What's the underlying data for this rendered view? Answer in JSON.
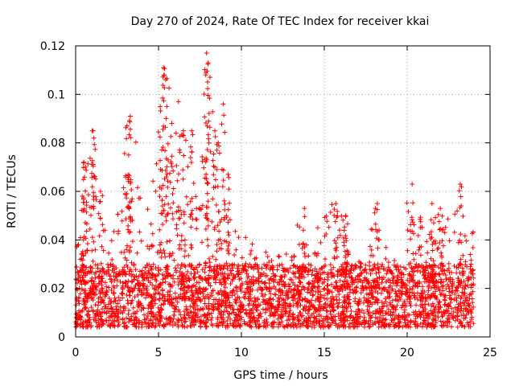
{
  "chart_data": {
    "type": "scatter",
    "title": "Day 270 of 2024, Rate Of TEC Index for receiver kkai",
    "xlabel": "GPS time / hours",
    "ylabel": "ROTI / TECUs",
    "xlim": [
      0,
      25
    ],
    "ylim": [
      0,
      0.12
    ],
    "xticks": [
      0,
      5,
      10,
      15,
      20,
      25
    ],
    "yticks": [
      0,
      0.02,
      0.04,
      0.06,
      0.08,
      0.1,
      0.12
    ],
    "xtick_labels": [
      "0",
      "5",
      "10",
      "15",
      "20",
      "25"
    ],
    "ytick_labels": [
      "0",
      "0.02",
      "0.04",
      "0.06",
      "0.08",
      "0.1",
      "0.12"
    ],
    "grid": true,
    "marker": "+",
    "series_color": "#ff0000",
    "baseline_band": {
      "x_range": [
        0,
        24
      ],
      "y_range": [
        0.004,
        0.03
      ]
    },
    "envelope": {
      "description": "upper envelope of ROTI values over the day",
      "x": [
        0,
        0.5,
        1,
        1.5,
        2,
        2.5,
        3,
        3.5,
        4,
        4.5,
        5,
        5.5,
        6,
        6.5,
        7,
        7.5,
        8,
        8.5,
        9,
        9.5,
        10,
        10.5,
        11,
        11.5,
        12,
        12.5,
        13,
        13.5,
        14,
        14.5,
        15,
        15.5,
        16,
        16.5,
        17,
        17.5,
        18,
        18.5,
        19,
        19.5,
        20,
        20.5,
        21,
        21.5,
        22,
        22.5,
        23,
        23.5,
        24
      ],
      "y": [
        0.036,
        0.072,
        0.085,
        0.06,
        0.05,
        0.05,
        0.087,
        0.09,
        0.06,
        0.055,
        0.095,
        0.11,
        0.09,
        0.097,
        0.085,
        0.06,
        0.117,
        0.08,
        0.07,
        0.045,
        0.04,
        0.042,
        0.035,
        0.035,
        0.03,
        0.038,
        0.033,
        0.053,
        0.035,
        0.045,
        0.05,
        0.055,
        0.052,
        0.045,
        0.032,
        0.03,
        0.055,
        0.036,
        0.04,
        0.035,
        0.063,
        0.045,
        0.055,
        0.053,
        0.048,
        0.05,
        0.063,
        0.045,
        0.044
      ]
    },
    "peaks": [
      {
        "x": 0.4,
        "y": 0.058
      },
      {
        "x": 0.5,
        "y": 0.072
      },
      {
        "x": 0.6,
        "y": 0.07
      },
      {
        "x": 1.0,
        "y": 0.085
      },
      {
        "x": 1.1,
        "y": 0.082
      },
      {
        "x": 1.5,
        "y": 0.06
      },
      {
        "x": 3.1,
        "y": 0.087
      },
      {
        "x": 3.3,
        "y": 0.091
      },
      {
        "x": 3.2,
        "y": 0.075
      },
      {
        "x": 5.1,
        "y": 0.095
      },
      {
        "x": 5.3,
        "y": 0.111
      },
      {
        "x": 5.35,
        "y": 0.108
      },
      {
        "x": 5.5,
        "y": 0.095
      },
      {
        "x": 5.8,
        "y": 0.088
      },
      {
        "x": 6.2,
        "y": 0.097
      },
      {
        "x": 6.5,
        "y": 0.085
      },
      {
        "x": 7.0,
        "y": 0.085
      },
      {
        "x": 7.9,
        "y": 0.117
      },
      {
        "x": 7.85,
        "y": 0.108
      },
      {
        "x": 8.0,
        "y": 0.113
      },
      {
        "x": 8.4,
        "y": 0.085
      },
      {
        "x": 8.6,
        "y": 0.08
      },
      {
        "x": 8.9,
        "y": 0.096
      },
      {
        "x": 9.2,
        "y": 0.067
      },
      {
        "x": 13.8,
        "y": 0.053
      },
      {
        "x": 15.7,
        "y": 0.055
      },
      {
        "x": 16.3,
        "y": 0.05
      },
      {
        "x": 18.2,
        "y": 0.055
      },
      {
        "x": 20.3,
        "y": 0.063
      },
      {
        "x": 21.5,
        "y": 0.055
      },
      {
        "x": 22.0,
        "y": 0.053
      },
      {
        "x": 23.2,
        "y": 0.063
      }
    ]
  }
}
